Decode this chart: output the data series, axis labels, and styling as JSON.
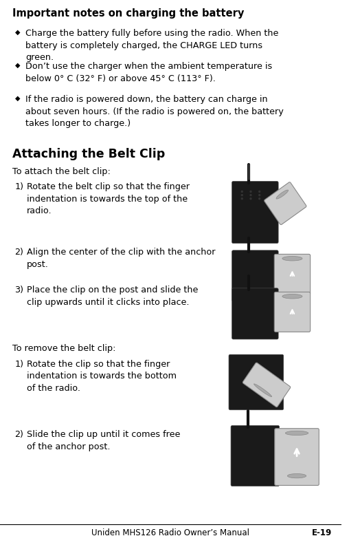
{
  "bg_color": "#ffffff",
  "text_color": "#000000",
  "title1": "Important notes on charging the battery",
  "bullet_char": "◆",
  "bullets": [
    "Charge the battery fully before using the radio. When the\nbattery is completely charged, the CHARGE LED turns\ngreen.",
    "Don’t use the charger when the ambient temperature is\nbelow 0° C (32° F) or above 45° C (113° F).",
    "If the radio is powered down, the battery can charge in\nabout seven hours. (If the radio is powered on, the battery\ntakes longer to charge.)"
  ],
  "title2": "Attaching the Belt Clip",
  "attach_intro": "To attach the belt clip:",
  "attach_steps": [
    "Rotate the belt clip so that the finger\nindentation is towards the top of the\nradio.",
    "Align the center of the clip with the anchor\npost.",
    "Place the clip on the post and slide the\nclip upwards until it clicks into place."
  ],
  "remove_intro": "To remove the belt clip:",
  "remove_steps": [
    "Rotate the clip so that the finger\nindentation is towards the bottom\nof the radio.",
    "Slide the clip up until it comes free\nof the anchor post."
  ],
  "footer_left": "Uniden MHS126 Radio Owner’s Manual",
  "footer_right": "E-19",
  "radio_dark": "#1a1a1a",
  "radio_mid": "#2d2d2d",
  "clip_light": "#cccccc",
  "clip_mid": "#aaaaaa",
  "clip_dark": "#888888"
}
